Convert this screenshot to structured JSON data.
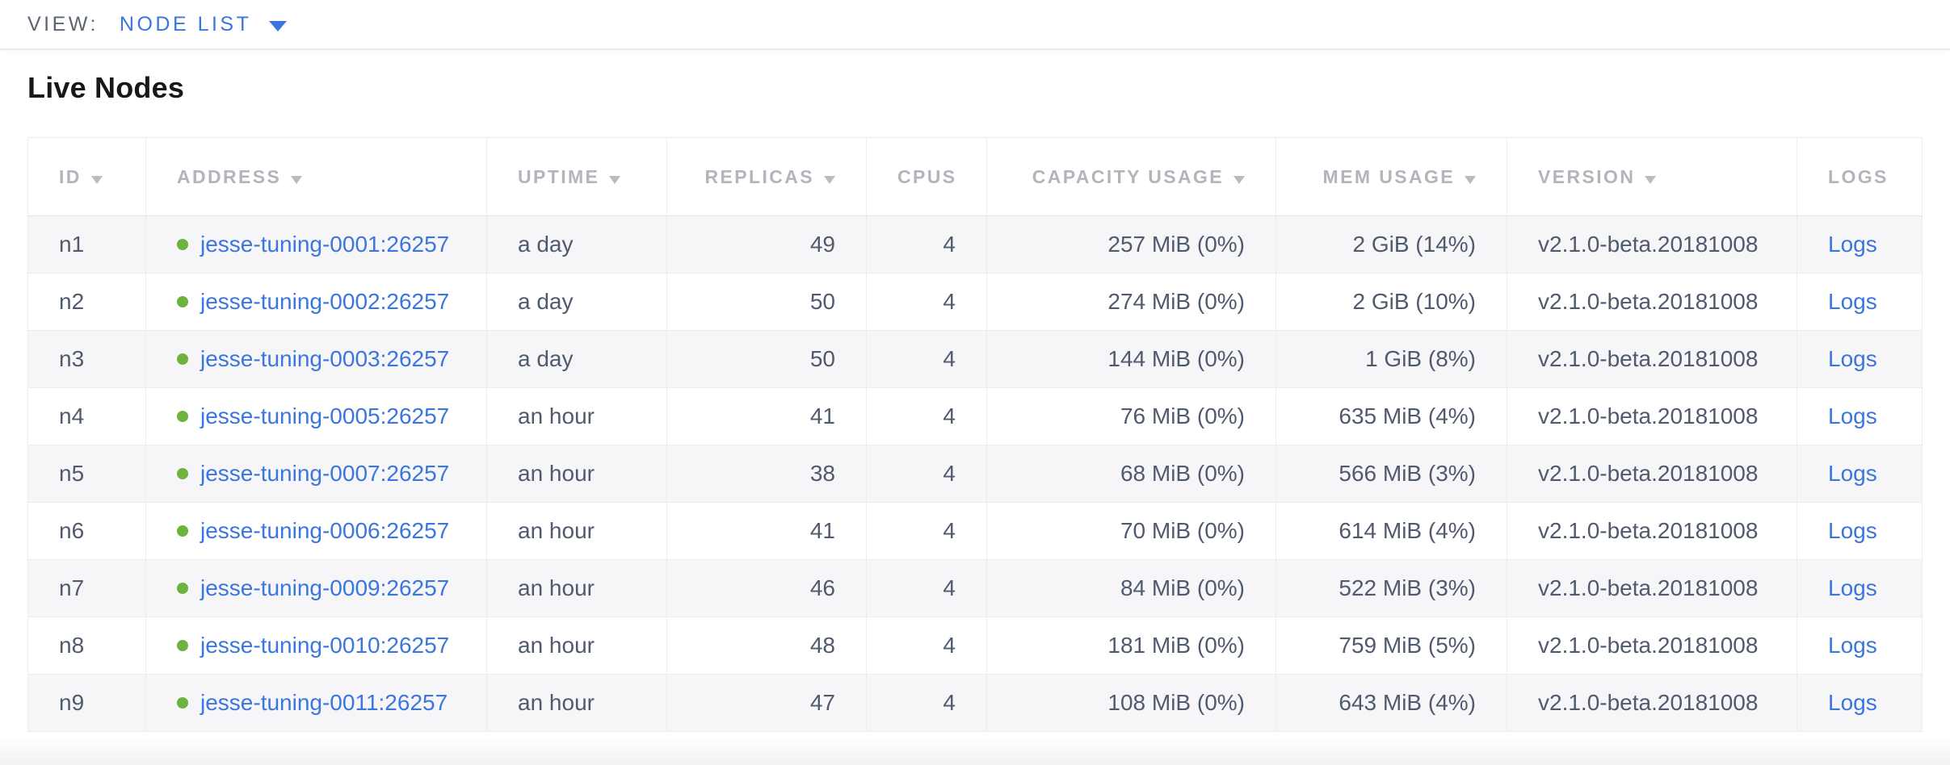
{
  "view_bar": {
    "label": "VIEW:",
    "selected": "NODE LIST"
  },
  "page": {
    "title": "Live Nodes"
  },
  "table": {
    "columns": [
      {
        "key": "id",
        "label": "ID",
        "sortable": true,
        "align": "left"
      },
      {
        "key": "address",
        "label": "ADDRESS",
        "sortable": true,
        "align": "left"
      },
      {
        "key": "uptime",
        "label": "UPTIME",
        "sortable": true,
        "align": "left"
      },
      {
        "key": "replicas",
        "label": "REPLICAS",
        "sortable": true,
        "align": "right"
      },
      {
        "key": "cpus",
        "label": "CPUS",
        "sortable": false,
        "align": "right"
      },
      {
        "key": "capacity",
        "label": "CAPACITY USAGE",
        "sortable": true,
        "align": "right"
      },
      {
        "key": "mem",
        "label": "MEM USAGE",
        "sortable": true,
        "align": "right"
      },
      {
        "key": "version",
        "label": "VERSION",
        "sortable": true,
        "align": "left"
      },
      {
        "key": "logs",
        "label": "LOGS",
        "sortable": false,
        "align": "left"
      }
    ],
    "rows": [
      {
        "id": "n1",
        "address": "jesse-tuning-0001:26257",
        "status": "live",
        "uptime": "a day",
        "replicas": "49",
        "cpus": "4",
        "capacity": "257 MiB (0%)",
        "mem": "2 GiB (14%)",
        "version": "v2.1.0-beta.20181008",
        "logs": "Logs"
      },
      {
        "id": "n2",
        "address": "jesse-tuning-0002:26257",
        "status": "live",
        "uptime": "a day",
        "replicas": "50",
        "cpus": "4",
        "capacity": "274 MiB (0%)",
        "mem": "2 GiB (10%)",
        "version": "v2.1.0-beta.20181008",
        "logs": "Logs"
      },
      {
        "id": "n3",
        "address": "jesse-tuning-0003:26257",
        "status": "live",
        "uptime": "a day",
        "replicas": "50",
        "cpus": "4",
        "capacity": "144 MiB (0%)",
        "mem": "1 GiB (8%)",
        "version": "v2.1.0-beta.20181008",
        "logs": "Logs"
      },
      {
        "id": "n4",
        "address": "jesse-tuning-0005:26257",
        "status": "live",
        "uptime": "an hour",
        "replicas": "41",
        "cpus": "4",
        "capacity": "76 MiB (0%)",
        "mem": "635 MiB (4%)",
        "version": "v2.1.0-beta.20181008",
        "logs": "Logs"
      },
      {
        "id": "n5",
        "address": "jesse-tuning-0007:26257",
        "status": "live",
        "uptime": "an hour",
        "replicas": "38",
        "cpus": "4",
        "capacity": "68 MiB (0%)",
        "mem": "566 MiB (3%)",
        "version": "v2.1.0-beta.20181008",
        "logs": "Logs"
      },
      {
        "id": "n6",
        "address": "jesse-tuning-0006:26257",
        "status": "live",
        "uptime": "an hour",
        "replicas": "41",
        "cpus": "4",
        "capacity": "70 MiB (0%)",
        "mem": "614 MiB (4%)",
        "version": "v2.1.0-beta.20181008",
        "logs": "Logs"
      },
      {
        "id": "n7",
        "address": "jesse-tuning-0009:26257",
        "status": "live",
        "uptime": "an hour",
        "replicas": "46",
        "cpus": "4",
        "capacity": "84 MiB (0%)",
        "mem": "522 MiB (3%)",
        "version": "v2.1.0-beta.20181008",
        "logs": "Logs"
      },
      {
        "id": "n8",
        "address": "jesse-tuning-0010:26257",
        "status": "live",
        "uptime": "an hour",
        "replicas": "48",
        "cpus": "4",
        "capacity": "181 MiB (0%)",
        "mem": "759 MiB (5%)",
        "version": "v2.1.0-beta.20181008",
        "logs": "Logs"
      },
      {
        "id": "n9",
        "address": "jesse-tuning-0011:26257",
        "status": "live",
        "uptime": "an hour",
        "replicas": "47",
        "cpus": "4",
        "capacity": "108 MiB (0%)",
        "mem": "643 MiB (4%)",
        "version": "v2.1.0-beta.20181008",
        "logs": "Logs"
      }
    ]
  },
  "colors": {
    "accent_blue": "#3a76dd",
    "link_blue": "#3a76dd",
    "status_live_green": "#6db33d",
    "header_gray": "#b3b5bc",
    "body_text": "#505a6e",
    "stripe_bg": "#f6f6f8",
    "border": "#ececef"
  }
}
